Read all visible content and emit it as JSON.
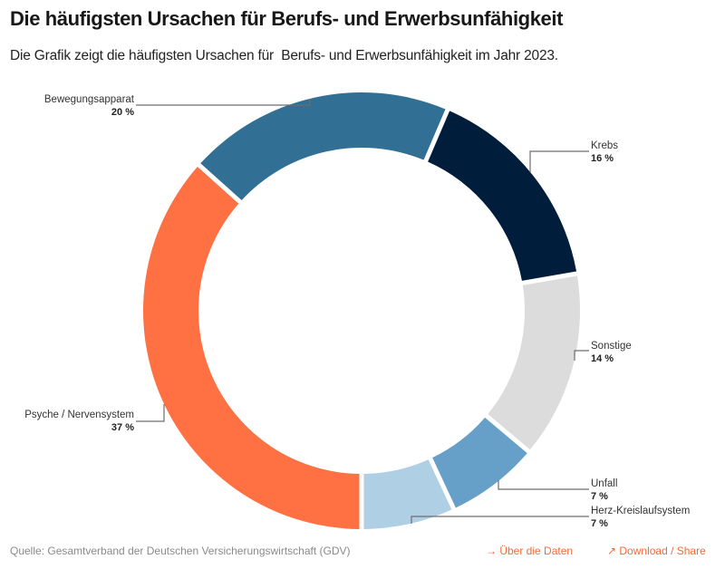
{
  "header": {
    "title": "Die häufigsten Ursachen für Berufs- und Erwerbsunfähigkeit",
    "subtitle": "Die Grafik zeigt die häufigsten Ursachen für  Berufs- und Erwerbsunfähigkeit im Jahr 2023."
  },
  "footer": {
    "source": "Quelle: Gesamtverband der Deutschen Versicherungswirtschaft (GDV)",
    "about_data": "→ Über die Daten",
    "download_share": "↗ Download / Share",
    "link_color": "#f36b36"
  },
  "chart_data": {
    "type": "pie",
    "variant": "donut",
    "title": "Die häufigsten Ursachen für Berufs- und Erwerbsunfähigkeit",
    "subtitle": "Die Grafik zeigt die häufigsten Ursachen für  Berufs- und Erwerbsunfähigkeit im Jahr 2023.",
    "unit": "%",
    "start": "bottom",
    "direction": "clockwise",
    "slices": [
      {
        "name": "Psyche / Nervensystem",
        "value": 37,
        "label": "37 %",
        "color": "#ff7043"
      },
      {
        "name": "Bewegungsapparat",
        "value": 20,
        "label": "20 %",
        "color": "#317094"
      },
      {
        "name": "Krebs",
        "value": 16,
        "label": "16 %",
        "color": "#001e3c"
      },
      {
        "name": "Sonstige",
        "value": 14,
        "label": "14 %",
        "color": "#dcdcdc"
      },
      {
        "name": "Unfall",
        "value": 7,
        "label": "7 %",
        "color": "#66a0c8"
      },
      {
        "name": "Herz-Kreislaufsystem",
        "value": 7,
        "label": "7 %",
        "color": "#aecfe4"
      }
    ]
  }
}
